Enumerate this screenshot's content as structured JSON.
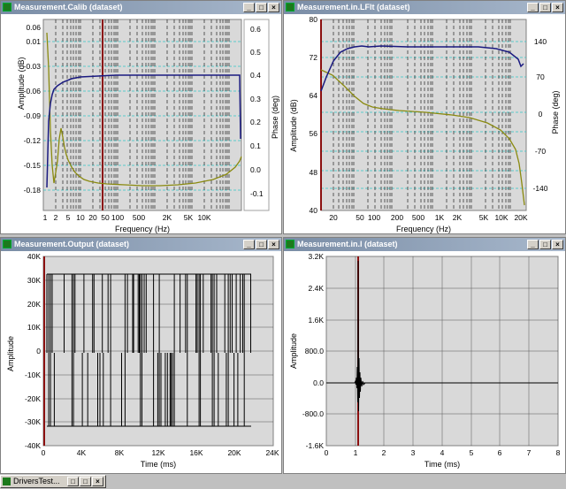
{
  "windows": {
    "w1": {
      "title": "Measurement.Calib (dataset)",
      "xlabel": "Frequency (Hz)",
      "ylabel_left": "Amplitude (dB)",
      "ylabel_right": "Phase (deg)",
      "yticks_left": [
        "0.06",
        "0.01",
        "-0.03",
        "-0.06",
        "-0.09",
        "-0.12",
        "-0.15",
        "-0.18"
      ],
      "yticks_right": [
        "0.6",
        "0.5",
        "0.4",
        "0.3",
        "0.2",
        "0.1",
        "0.0",
        "-0.1"
      ],
      "xticks": [
        "1",
        "2",
        "5",
        "10",
        "20",
        "50",
        "100",
        "500",
        "2K",
        "5K",
        "10K"
      ]
    },
    "w2": {
      "title": "Measurement.in.LFlt (dataset)",
      "xlabel": "Frequency (Hz)",
      "ylabel_left": "Amplitude (dB)",
      "ylabel_right": "Phase (deg)",
      "yticks_left": [
        "80",
        "72",
        "64",
        "56",
        "48",
        "40"
      ],
      "yticks_right": [
        "140",
        "70",
        "0",
        "-70",
        "-140"
      ],
      "xticks": [
        "20",
        "50",
        "100",
        "200",
        "500",
        "1K",
        "2K",
        "5K",
        "10K",
        "20K"
      ]
    },
    "w3": {
      "title": "Measurement.Output (dataset)",
      "xlabel": "Time (ms)",
      "ylabel": "Amplitude",
      "yticks": [
        "40K",
        "30K",
        "20K",
        "10K",
        "0",
        "-10K",
        "-20K",
        "-30K",
        "-40K"
      ],
      "xticks": [
        "0",
        "4K",
        "8K",
        "12K",
        "16K",
        "20K",
        "24K"
      ]
    },
    "w4": {
      "title": "Measurement.in.l (dataset)",
      "xlabel": "Time (ms)",
      "ylabel": "Amplitude",
      "yticks": [
        "3.2K",
        "2.4K",
        "1.6K",
        "800.0",
        "0.0",
        "-800.0",
        "-1.6K"
      ],
      "xticks": [
        "0",
        "1",
        "2",
        "3",
        "4",
        "5",
        "6",
        "7",
        "8"
      ]
    }
  },
  "taskbar": {
    "label": "DriversTest..."
  },
  "colors": {
    "amplitude": "#1a1a80",
    "phase": "#8a8a10",
    "marker": "#8b1010",
    "grid_cyan": "#33c8c8",
    "titlebar": "#7a8da6"
  }
}
